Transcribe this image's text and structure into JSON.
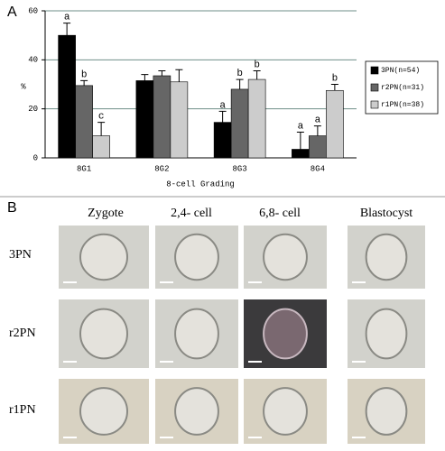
{
  "chart_data": {
    "type": "bar",
    "panel_label": "A",
    "ylabel": "%",
    "xlabel": "8-cell Grading",
    "categories": [
      "8G1",
      "8G2",
      "8G3",
      "8G4"
    ],
    "series": [
      {
        "name": "3PN(n=54)",
        "color": "#000000",
        "values": [
          50,
          31.5,
          14.5,
          3.5
        ],
        "errors": [
          5,
          2.5,
          4.5,
          7
        ],
        "letters": [
          "a",
          null,
          "a",
          "a"
        ]
      },
      {
        "name": "r2PN(n=31)",
        "color": "#666666",
        "values": [
          29.5,
          33.5,
          28,
          9
        ],
        "errors": [
          2,
          2,
          4,
          4
        ],
        "letters": [
          "b",
          null,
          "b",
          "a"
        ]
      },
      {
        "name": "r1PN(n=38)",
        "color": "#cccccc",
        "values": [
          9,
          31,
          32,
          27.5
        ],
        "errors": [
          5.5,
          5,
          3.5,
          2.5
        ],
        "letters": [
          "c",
          null,
          "b",
          "b"
        ]
      }
    ],
    "ylim": [
      0,
      60
    ],
    "yticks": [
      0,
      20,
      40,
      60
    ],
    "grid": true,
    "legend": "right"
  },
  "panel_b": {
    "label": "B",
    "columns": [
      "Zygote",
      "2,4- cell",
      "6,8- cell",
      "Blastocyst"
    ],
    "rows": [
      "3PN",
      "r2PN",
      "r1PN"
    ]
  }
}
